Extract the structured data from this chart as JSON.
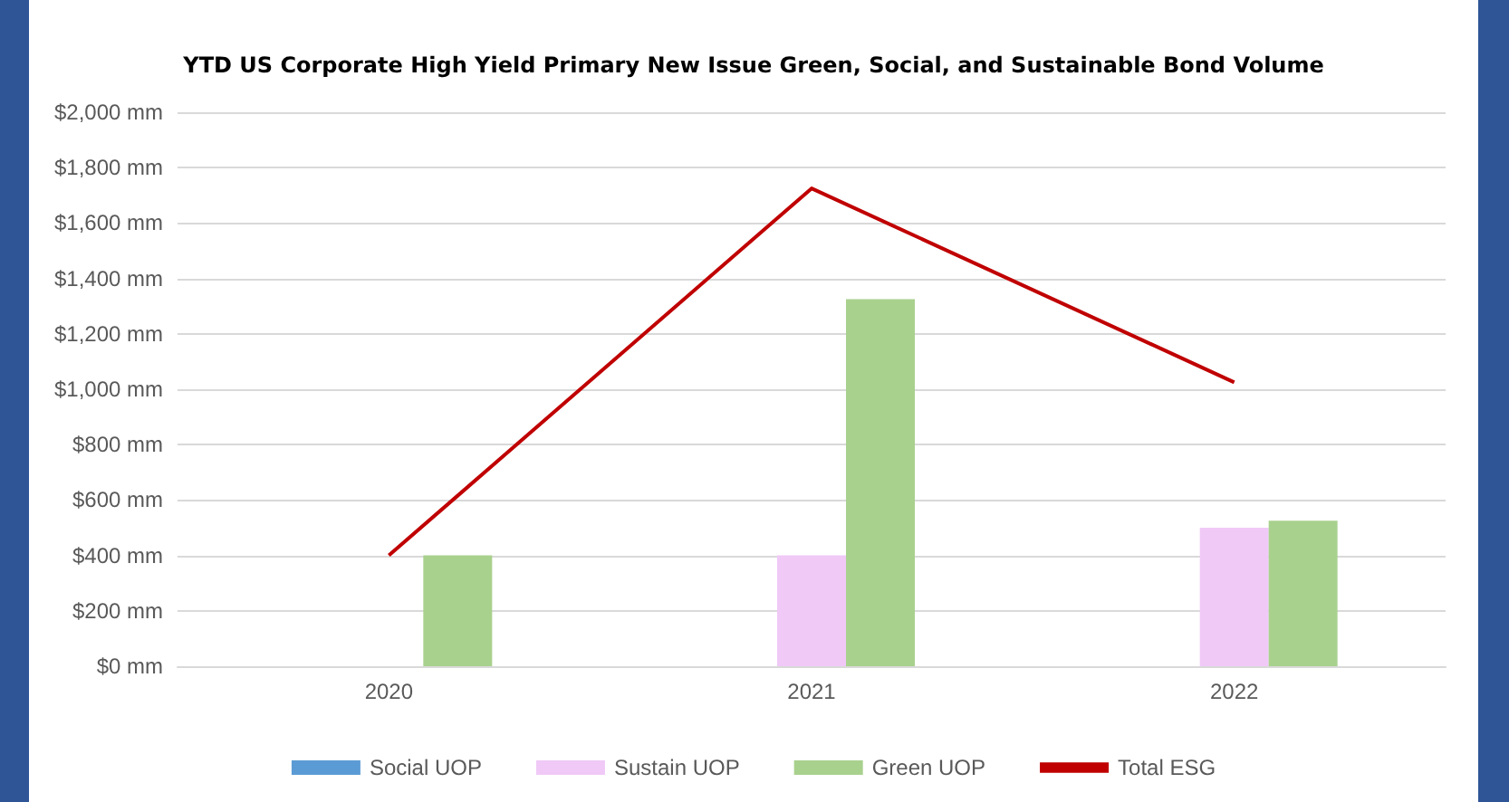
{
  "chart_data": {
    "type": "bar",
    "title": "YTD US Corporate High Yield Primary New Issue Green, Social, and Sustainable Bond Volume",
    "categories": [
      "2020",
      "2021",
      "2022"
    ],
    "series": [
      {
        "name": "Social UOP",
        "color": "#5b9bd5",
        "values": [
          0,
          0,
          0
        ]
      },
      {
        "name": "Sustain UOP",
        "color": "#f0c9f7",
        "values": [
          0,
          400,
          500
        ]
      },
      {
        "name": "Green UOP",
        "color": "#a9d18e",
        "values": [
          400,
          1325,
          525
        ]
      },
      {
        "name": "Total ESG",
        "type": "line",
        "color": "#c00000",
        "values": [
          400,
          1725,
          1025
        ]
      }
    ],
    "ylim": [
      0,
      2000
    ],
    "yticks": [
      {
        "value": 0,
        "label": "$0 mm"
      },
      {
        "value": 200,
        "label": "$200 mm"
      },
      {
        "value": 400,
        "label": "$400 mm"
      },
      {
        "value": 600,
        "label": "$600 mm"
      },
      {
        "value": 800,
        "label": "$800 mm"
      },
      {
        "value": 1000,
        "label": "$1,000 mm"
      },
      {
        "value": 1200,
        "label": "$1,200 mm"
      },
      {
        "value": 1400,
        "label": "$1,400 mm"
      },
      {
        "value": 1600,
        "label": "$1,600 mm"
      },
      {
        "value": 1800,
        "label": "$1,800 mm"
      },
      {
        "value": 2000,
        "label": "$2,000 mm"
      }
    ],
    "grid": "y",
    "legend": "bottom",
    "marker": "none"
  }
}
